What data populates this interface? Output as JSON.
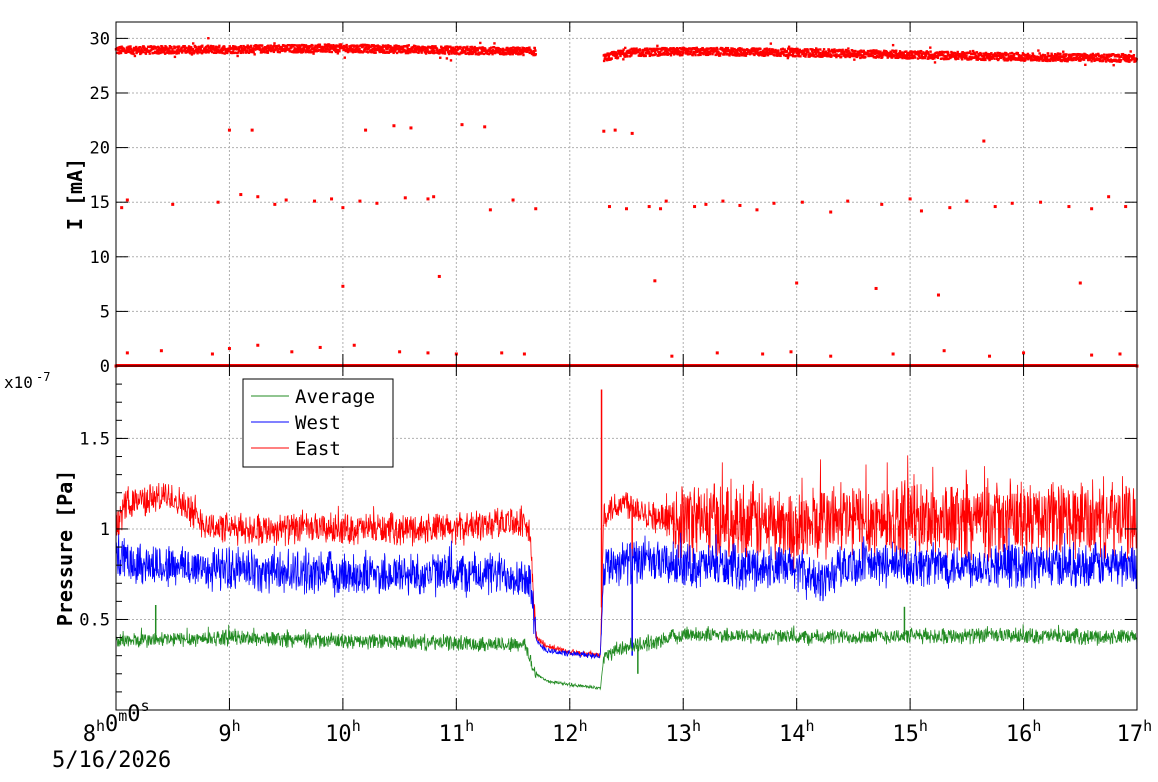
{
  "chart_data": [
    {
      "type": "scatter",
      "ylabel": "I [mA]",
      "xlim": [
        8,
        17
      ],
      "ylim": [
        0,
        31.5
      ],
      "yticks": [
        0,
        5,
        10,
        15,
        20,
        25,
        30
      ],
      "grid": true,
      "series": [
        {
          "color": "#ff0000",
          "main_level": [
            [
              8.0,
              28.9
            ],
            [
              9.0,
              29.0
            ],
            [
              10.0,
              29.1
            ],
            [
              11.0,
              28.9
            ],
            [
              11.7,
              28.8
            ],
            [
              12.3,
              28.2
            ],
            [
              12.5,
              28.7
            ],
            [
              13.0,
              28.8
            ],
            [
              14.0,
              28.7
            ],
            [
              15.0,
              28.5
            ],
            [
              16.0,
              28.3
            ],
            [
              17.0,
              28.2
            ]
          ],
          "gap": [
            11.7,
            12.3
          ],
          "outliers": [
            [
              8.05,
              14.5
            ],
            [
              8.1,
              15.2
            ],
            [
              8.5,
              14.8
            ],
            [
              8.9,
              15.0
            ],
            [
              9.0,
              21.6
            ],
            [
              9.1,
              15.7
            ],
            [
              9.2,
              21.6
            ],
            [
              9.25,
              15.5
            ],
            [
              9.4,
              14.8
            ],
            [
              9.5,
              15.2
            ],
            [
              9.75,
              15.1
            ],
            [
              9.9,
              15.3
            ],
            [
              10.0,
              14.5
            ],
            [
              10.0,
              7.3
            ],
            [
              10.15,
              15.1
            ],
            [
              10.2,
              21.6
            ],
            [
              10.3,
              14.9
            ],
            [
              10.45,
              22.0
            ],
            [
              10.55,
              15.4
            ],
            [
              10.6,
              21.8
            ],
            [
              10.75,
              15.3
            ],
            [
              10.8,
              15.5
            ],
            [
              10.85,
              8.2
            ],
            [
              11.05,
              22.1
            ],
            [
              11.25,
              21.9
            ],
            [
              11.3,
              14.3
            ],
            [
              11.5,
              15.2
            ],
            [
              11.7,
              14.4
            ],
            [
              12.3,
              21.5
            ],
            [
              12.35,
              14.6
            ],
            [
              12.4,
              21.6
            ],
            [
              12.5,
              14.4
            ],
            [
              12.55,
              21.3
            ],
            [
              12.7,
              14.6
            ],
            [
              12.75,
              7.8
            ],
            [
              12.8,
              14.4
            ],
            [
              12.85,
              15.1
            ],
            [
              13.1,
              14.6
            ],
            [
              13.2,
              14.8
            ],
            [
              13.35,
              15.1
            ],
            [
              13.5,
              14.7
            ],
            [
              13.65,
              14.3
            ],
            [
              13.8,
              14.9
            ],
            [
              14.0,
              7.6
            ],
            [
              14.05,
              15.0
            ],
            [
              14.3,
              14.1
            ],
            [
              14.45,
              15.1
            ],
            [
              14.7,
              7.1
            ],
            [
              14.75,
              14.8
            ],
            [
              15.0,
              15.3
            ],
            [
              15.1,
              14.2
            ],
            [
              15.25,
              6.5
            ],
            [
              15.35,
              14.5
            ],
            [
              15.5,
              15.1
            ],
            [
              15.65,
              20.6
            ],
            [
              15.75,
              14.6
            ],
            [
              15.9,
              14.9
            ],
            [
              16.15,
              15.0
            ],
            [
              16.4,
              14.6
            ],
            [
              16.5,
              7.6
            ],
            [
              16.6,
              14.4
            ],
            [
              16.75,
              15.5
            ],
            [
              16.9,
              14.6
            ],
            [
              8.1,
              1.2
            ],
            [
              8.4,
              1.4
            ],
            [
              8.85,
              1.1
            ],
            [
              9.0,
              1.6
            ],
            [
              9.25,
              1.9
            ],
            [
              9.55,
              1.3
            ],
            [
              9.8,
              1.7
            ],
            [
              10.1,
              1.9
            ],
            [
              10.5,
              1.3
            ],
            [
              10.75,
              1.2
            ],
            [
              11.0,
              1.1
            ],
            [
              11.4,
              1.2
            ],
            [
              11.6,
              1.1
            ],
            [
              12.9,
              0.9
            ],
            [
              13.3,
              1.2
            ],
            [
              13.7,
              1.1
            ],
            [
              13.95,
              1.3
            ],
            [
              14.3,
              0.9
            ],
            [
              14.85,
              1.1
            ],
            [
              15.3,
              1.4
            ],
            [
              15.7,
              0.9
            ],
            [
              16.0,
              1.2
            ],
            [
              16.6,
              1.0
            ],
            [
              16.85,
              1.1
            ],
            [
              8.0,
              0.0
            ],
            [
              17.0,
              0.0
            ]
          ],
          "noise_pts_per_hour": 360
        }
      ]
    },
    {
      "type": "line",
      "ylabel": "Pressure [Pa]",
      "yscale_label": "x10",
      "yscale_exp": "-7",
      "xlim": [
        8,
        17
      ],
      "ylim": [
        0.0,
        1.9
      ],
      "yticks": [
        0.5,
        1.0,
        1.5
      ],
      "ytick_labels": [
        "0.5",
        "1",
        "1.5"
      ],
      "grid": true,
      "legend": {
        "placement": "top-left",
        "entries": [
          {
            "name": "Average",
            "color": "#228b22"
          },
          {
            "name": "West",
            "color": "#0000ff"
          },
          {
            "name": "East",
            "color": "#ff0000"
          }
        ]
      },
      "series": [
        {
          "name": "East",
          "color": "#ff0000",
          "baseline": [
            [
              8.0,
              1.0
            ],
            [
              8.1,
              1.15
            ],
            [
              8.5,
              1.18
            ],
            [
              8.8,
              1.02
            ],
            [
              9.0,
              1.0
            ],
            [
              10.0,
              1.0
            ],
            [
              10.5,
              1.0
            ],
            [
              11.0,
              1.0
            ],
            [
              11.5,
              1.05
            ],
            [
              11.65,
              0.98
            ],
            [
              11.7,
              0.4
            ],
            [
              11.8,
              0.35
            ],
            [
              12.0,
              0.32
            ],
            [
              12.27,
              0.3
            ],
            [
              12.3,
              1.1
            ],
            [
              12.5,
              1.15
            ],
            [
              12.8,
              1.05
            ],
            [
              13.0,
              1.05
            ],
            [
              13.5,
              1.05
            ],
            [
              14.0,
              1.0
            ],
            [
              14.3,
              1.05
            ],
            [
              15.0,
              1.05
            ],
            [
              16.0,
              1.05
            ],
            [
              17.0,
              1.05
            ]
          ],
          "noise_amp": [
            [
              8.0,
              0.1
            ],
            [
              11.7,
              0.1
            ],
            [
              11.71,
              0.02
            ],
            [
              12.29,
              0.02
            ],
            [
              12.3,
              0.1
            ],
            [
              12.9,
              0.1
            ],
            [
              12.95,
              0.25
            ],
            [
              17.0,
              0.25
            ]
          ],
          "spikes": [
            [
              12.28,
              1.77
            ],
            [
              12.55,
              0.35
            ],
            [
              12.6,
              1.15
            ]
          ]
        },
        {
          "name": "West",
          "color": "#0000ff",
          "baseline": [
            [
              8.0,
              0.85
            ],
            [
              8.3,
              0.8
            ],
            [
              9.0,
              0.78
            ],
            [
              10.0,
              0.75
            ],
            [
              11.0,
              0.75
            ],
            [
              11.5,
              0.75
            ],
            [
              11.65,
              0.72
            ],
            [
              11.7,
              0.38
            ],
            [
              11.8,
              0.33
            ],
            [
              12.0,
              0.31
            ],
            [
              12.27,
              0.3
            ],
            [
              12.3,
              0.8
            ],
            [
              12.5,
              0.82
            ],
            [
              13.0,
              0.8
            ],
            [
              14.0,
              0.78
            ],
            [
              14.2,
              0.7
            ],
            [
              14.4,
              0.8
            ],
            [
              15.0,
              0.8
            ],
            [
              16.0,
              0.8
            ],
            [
              17.0,
              0.8
            ]
          ],
          "noise_amp": [
            [
              8.0,
              0.14
            ],
            [
              11.7,
              0.14
            ],
            [
              11.71,
              0.02
            ],
            [
              12.29,
              0.02
            ],
            [
              12.3,
              0.14
            ],
            [
              17.0,
              0.14
            ]
          ],
          "spikes": [
            [
              12.55,
              0.3
            ]
          ]
        },
        {
          "name": "Average",
          "color": "#228b22",
          "baseline": [
            [
              8.0,
              0.38
            ],
            [
              9.0,
              0.4
            ],
            [
              10.0,
              0.38
            ],
            [
              11.0,
              0.37
            ],
            [
              11.6,
              0.36
            ],
            [
              11.7,
              0.2
            ],
            [
              11.8,
              0.16
            ],
            [
              12.0,
              0.14
            ],
            [
              12.27,
              0.12
            ],
            [
              12.3,
              0.3
            ],
            [
              12.5,
              0.35
            ],
            [
              12.8,
              0.38
            ],
            [
              13.0,
              0.42
            ],
            [
              14.0,
              0.4
            ],
            [
              15.0,
              0.41
            ],
            [
              16.0,
              0.41
            ],
            [
              17.0,
              0.4
            ]
          ],
          "noise_amp": [
            [
              8.0,
              0.05
            ],
            [
              11.7,
              0.05
            ],
            [
              11.71,
              0.01
            ],
            [
              12.29,
              0.01
            ],
            [
              12.3,
              0.05
            ],
            [
              17.0,
              0.05
            ]
          ],
          "spikes": [
            [
              8.35,
              0.58
            ],
            [
              14.95,
              0.57
            ],
            [
              12.6,
              0.2
            ]
          ]
        }
      ]
    }
  ],
  "x_axis": {
    "ticks": [
      {
        "hour": 8,
        "base": "8",
        "sup": "h",
        "extra": "0",
        "sup2": "m",
        "extra2": "0",
        "sup3": "s"
      },
      {
        "hour": 9,
        "base": "9",
        "sup": "h"
      },
      {
        "hour": 10,
        "base": "10",
        "sup": "h"
      },
      {
        "hour": 11,
        "base": "11",
        "sup": "h"
      },
      {
        "hour": 12,
        "base": "12",
        "sup": "h"
      },
      {
        "hour": 13,
        "base": "13",
        "sup": "h"
      },
      {
        "hour": 14,
        "base": "14",
        "sup": "h"
      },
      {
        "hour": 15,
        "base": "15",
        "sup": "h"
      },
      {
        "hour": 16,
        "base": "16",
        "sup": "h"
      },
      {
        "hour": 17,
        "base": "17",
        "sup": "h"
      }
    ],
    "date_label": "5/16/2026"
  }
}
